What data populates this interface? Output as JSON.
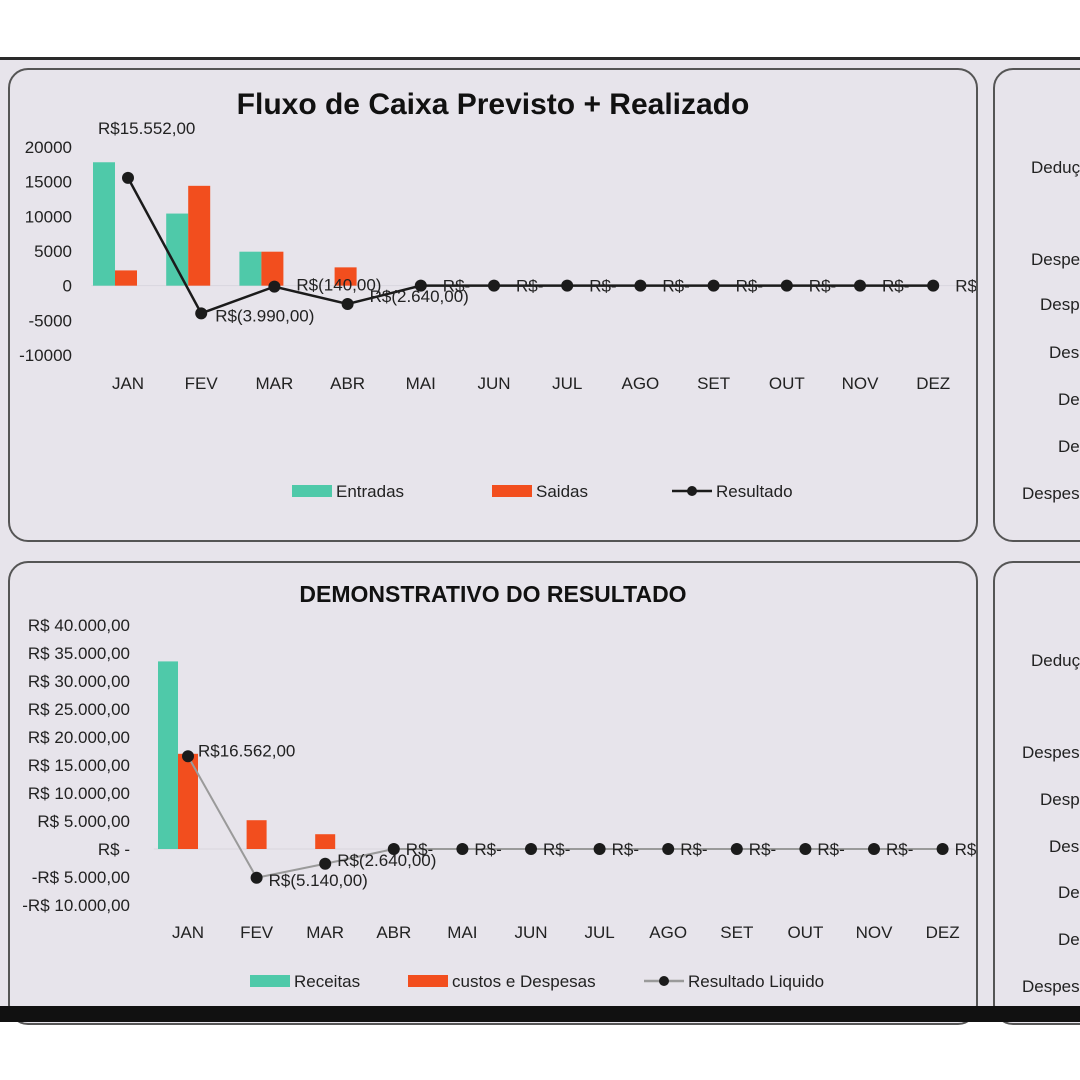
{
  "chart_data": [
    {
      "type": "bar",
      "title": "Fluxo de Caixa Previsto + Realizado",
      "categories": [
        "JAN",
        "FEV",
        "MAR",
        "ABR",
        "MAI",
        "JUN",
        "JUL",
        "AGO",
        "SET",
        "OUT",
        "NOV",
        "DEZ"
      ],
      "series": [
        {
          "name": "Entradas",
          "type": "bar",
          "color": "#4fc9a9",
          "values": [
            17800,
            10400,
            4900,
            0,
            0,
            0,
            0,
            0,
            0,
            0,
            0,
            0
          ]
        },
        {
          "name": "Saidas",
          "type": "bar",
          "color": "#f24e1e",
          "values": [
            2200,
            14400,
            4900,
            2640,
            0,
            0,
            0,
            0,
            0,
            0,
            0,
            0
          ]
        },
        {
          "name": "Resultado",
          "type": "line",
          "color": "#1b1b1b",
          "values": [
            15552,
            -3990,
            -140,
            -2640,
            0,
            0,
            0,
            0,
            0,
            0,
            0,
            0
          ]
        }
      ],
      "data_labels": [
        "R$15.552,00",
        "R$(3.990,00)",
        "R$(140,00)",
        "R$(2.640,00)",
        "R$-",
        "R$-",
        "R$-",
        "R$-",
        "R$-",
        "R$-",
        "R$-",
        "R$-"
      ],
      "yticks": [
        "20000",
        "15000",
        "10000",
        "5000",
        "0",
        "-5000",
        "-10000"
      ],
      "ylim": [
        -10000,
        20000
      ],
      "legend": "bottom"
    },
    {
      "type": "bar",
      "title": "DEMONSTRATIVO DO RESULTADO",
      "categories": [
        "JAN",
        "FEV",
        "MAR",
        "ABR",
        "MAI",
        "JUN",
        "JUL",
        "AGO",
        "SET",
        "OUT",
        "NOV",
        "DEZ"
      ],
      "series": [
        {
          "name": "Receitas",
          "type": "bar",
          "color": "#4fc9a9",
          "values": [
            33500,
            0,
            0,
            0,
            0,
            0,
            0,
            0,
            0,
            0,
            0,
            0
          ]
        },
        {
          "name": "custos e Despesas",
          "type": "bar",
          "color": "#f24e1e",
          "values": [
            17000,
            5140,
            2640,
            0,
            0,
            0,
            0,
            0,
            0,
            0,
            0,
            0
          ]
        },
        {
          "name": "Resultado Liquido",
          "type": "line",
          "color": "#9a9a9a",
          "values": [
            16562,
            -5140,
            -2640,
            0,
            0,
            0,
            0,
            0,
            0,
            0,
            0,
            0
          ]
        }
      ],
      "data_labels": [
        "R$16.562,00",
        "R$(5.140,00)",
        "R$(2.640,00)",
        "R$-",
        "R$-",
        "R$-",
        "R$-",
        "R$-",
        "R$-",
        "R$-",
        "R$-",
        "R$-"
      ],
      "yticks": [
        "R$ 40.000,00",
        "R$ 35.000,00",
        "R$ 30.000,00",
        "R$ 25.000,00",
        "R$ 20.000,00",
        "R$ 15.000,00",
        "R$ 10.000,00",
        "R$ 5.000,00",
        "R$ -",
        "-R$ 5.000,00",
        "-R$ 10.000,00"
      ],
      "ylim": [
        -10000,
        40000
      ],
      "legend": "bottom"
    }
  ],
  "side_panel_top": {
    "labels": [
      "Deduçõ",
      "Despes",
      "Despe",
      "Desp",
      "Des",
      "Des",
      "Despesa"
    ]
  },
  "side_panel_bottom": {
    "labels": [
      "Deduçõ",
      "Despesa",
      "Despe",
      "Desp",
      "Des",
      "Des",
      "Despesa"
    ]
  }
}
